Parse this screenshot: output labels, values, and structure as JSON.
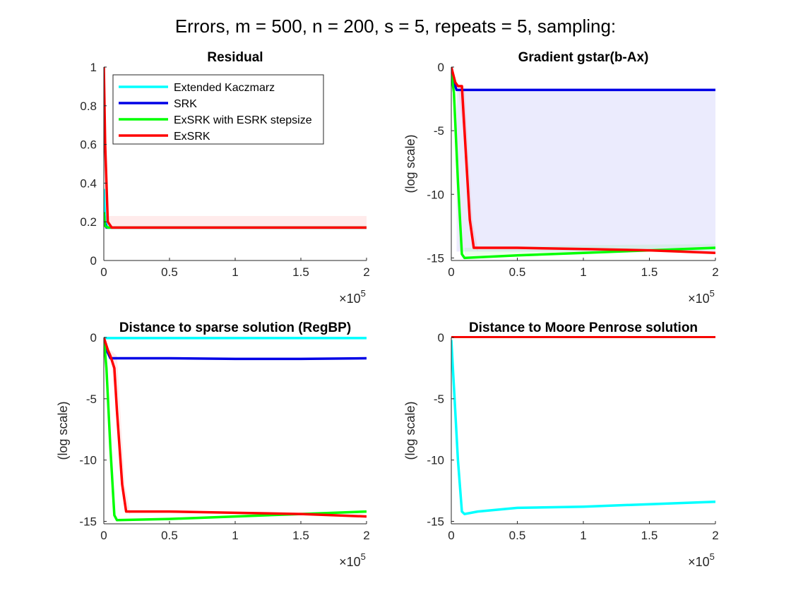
{
  "figure": {
    "title": "Errors, m = 500, n = 200, s = 5, repeats = 5, sampling:"
  },
  "colors": {
    "Extended Kaczmarz": "#00ffff",
    "SRK": "#0000e6",
    "ExSRK with ESRK stepsize": "#00ff00",
    "ExSRK": "#ff0000"
  },
  "legend": {
    "placement": "top-left of first panel",
    "entries": [
      "Extended Kaczmarz",
      "SRK",
      "ExSRK with ESRK stepsize",
      "ExSRK"
    ]
  },
  "chart_data": [
    {
      "type": "line",
      "title": "Residual",
      "xlabel": "",
      "ylabel": "",
      "xlim": [
        0,
        200000
      ],
      "ylim": [
        0,
        1
      ],
      "x_multiplier": "×10^5",
      "x_multiplier_base": "×10",
      "x_multiplier_exp": "5",
      "xticks": [
        0,
        50000,
        100000,
        150000,
        200000
      ],
      "xtick_labels": [
        "0",
        "0.5",
        "1",
        "1.5",
        "2"
      ],
      "yticks": [
        0,
        0.2,
        0.4,
        0.6,
        0.8,
        1
      ],
      "ytick_labels": [
        "0",
        "0.2",
        "0.4",
        "0.6",
        "0.8",
        "1"
      ],
      "grid": false,
      "bands": [
        {
          "series": "ExSRK",
          "x": [
            0,
            200000
          ],
          "y_low": [
            0.17,
            0.17
          ],
          "y_high": [
            0.23,
            0.23
          ]
        }
      ],
      "series": [
        {
          "name": "Extended Kaczmarz",
          "x": [
            0,
            1000,
            3000,
            200000
          ],
          "y": [
            0.37,
            0.2,
            0.17,
            0.17
          ]
        },
        {
          "name": "SRK",
          "x": [
            0,
            500,
            2000,
            200000
          ],
          "y": [
            0.25,
            0.2,
            0.17,
            0.17
          ]
        },
        {
          "name": "ExSRK with ESRK stepsize",
          "x": [
            0,
            800,
            3000,
            200000
          ],
          "y": [
            0.25,
            0.18,
            0.17,
            0.17
          ]
        },
        {
          "name": "ExSRK",
          "x": [
            0,
            1000,
            3000,
            6000,
            200000
          ],
          "y": [
            1.0,
            0.6,
            0.2,
            0.17,
            0.17
          ]
        }
      ]
    },
    {
      "type": "line",
      "title": "Gradient gstar(b-Ax)",
      "xlabel": "",
      "ylabel": "(log scale)",
      "xlim": [
        0,
        200000
      ],
      "ylim": [
        -15.2,
        0
      ],
      "x_multiplier": "×10^5",
      "x_multiplier_base": "×10",
      "x_multiplier_exp": "5",
      "xticks": [
        0,
        50000,
        100000,
        150000,
        200000
      ],
      "xtick_labels": [
        "0",
        "0.5",
        "1",
        "1.5",
        "2"
      ],
      "yticks": [
        0,
        -5,
        -10,
        -15
      ],
      "ytick_labels": [
        "0",
        "-5",
        "-10",
        "-15"
      ],
      "grid": false,
      "bands": [
        {
          "series": "SRK",
          "x": [
            4000,
            200000
          ],
          "y_low": [
            -14.5,
            -14.5
          ],
          "y_high": [
            -1.8,
            -1.8
          ]
        },
        {
          "series": "ExSRK",
          "x": [
            5000,
            10000,
            16000,
            20000
          ],
          "y_low": [
            -1.5,
            -6,
            -13.8,
            -14.5
          ],
          "y_high": [
            -1.5,
            -1.5,
            -12,
            -14.2
          ]
        },
        {
          "series": "ExSRK with ESRK stepsize",
          "x": [
            10000,
            100000,
            200000
          ],
          "y_low": [
            -14.9,
            -14.6,
            -14.4
          ],
          "y_high": [
            -14.2,
            -14.0,
            -13.9
          ]
        }
      ],
      "series": [
        {
          "name": "SRK",
          "x": [
            0,
            2000,
            4000,
            50000,
            100000,
            150000,
            200000
          ],
          "y": [
            -0.5,
            -1.2,
            -1.8,
            -1.8,
            -1.8,
            -1.8,
            -1.8
          ]
        },
        {
          "name": "ExSRK with ESRK stepsize",
          "x": [
            0,
            2000,
            5000,
            8000,
            10000,
            50000,
            100000,
            150000,
            200000
          ],
          "y": [
            -0.5,
            -2,
            -9,
            -14.7,
            -15.0,
            -14.8,
            -14.6,
            -14.4,
            -14.2
          ]
        },
        {
          "name": "ExSRK",
          "x": [
            0,
            3000,
            5000,
            8000,
            10000,
            14000,
            17000,
            50000,
            100000,
            150000,
            200000
          ],
          "y": [
            0,
            -1.2,
            -1.5,
            -1.5,
            -5,
            -12,
            -14.2,
            -14.2,
            -14.3,
            -14.4,
            -14.6
          ]
        }
      ]
    },
    {
      "type": "line",
      "title": "Distance to sparse solution (RegBP)",
      "xlabel": "",
      "ylabel": "(log scale)",
      "xlim": [
        0,
        200000
      ],
      "ylim": [
        -15.2,
        0
      ],
      "x_multiplier": "×10^5",
      "x_multiplier_base": "×10",
      "x_multiplier_exp": "5",
      "xticks": [
        0,
        50000,
        100000,
        150000,
        200000
      ],
      "xtick_labels": [
        "0",
        "0.5",
        "1",
        "1.5",
        "2"
      ],
      "yticks": [
        0,
        -5,
        -10,
        -15
      ],
      "ytick_labels": [
        "0",
        "-5",
        "-10",
        "-15"
      ],
      "grid": false,
      "bands": [
        {
          "series": "ExSRK",
          "x": [
            5000,
            10000,
            16000,
            20000
          ],
          "y_low": [
            -1.5,
            -6,
            -13.8,
            -14.5
          ],
          "y_high": [
            -1.0,
            -1.5,
            -12,
            -14.2
          ]
        }
      ],
      "series": [
        {
          "name": "Extended Kaczmarz",
          "x": [
            0,
            200000
          ],
          "y": [
            -0.05,
            -0.05
          ]
        },
        {
          "name": "SRK",
          "x": [
            0,
            2000,
            5000,
            50000,
            100000,
            150000,
            200000
          ],
          "y": [
            0,
            -1.0,
            -1.7,
            -1.7,
            -1.75,
            -1.75,
            -1.7
          ]
        },
        {
          "name": "ExSRK with ESRK stepsize",
          "x": [
            0,
            2000,
            5000,
            8000,
            10000,
            50000,
            100000,
            150000,
            200000
          ],
          "y": [
            0,
            -2.5,
            -9,
            -14.5,
            -14.9,
            -14.8,
            -14.6,
            -14.4,
            -14.2
          ]
        },
        {
          "name": "ExSRK",
          "x": [
            0,
            3000,
            5000,
            8000,
            10000,
            14000,
            17000,
            50000,
            100000,
            150000,
            200000
          ],
          "y": [
            0,
            -1.0,
            -1.5,
            -2.5,
            -6,
            -12,
            -14.2,
            -14.2,
            -14.3,
            -14.4,
            -14.6
          ]
        }
      ]
    },
    {
      "type": "line",
      "title": "Distance to Moore Penrose solution",
      "xlabel": "",
      "ylabel": "(log scale)",
      "xlim": [
        0,
        200000
      ],
      "ylim": [
        -15.2,
        0
      ],
      "x_multiplier": "×10^5",
      "x_multiplier_base": "×10",
      "x_multiplier_exp": "5",
      "xticks": [
        0,
        50000,
        100000,
        150000,
        200000
      ],
      "xtick_labels": [
        "0",
        "0.5",
        "1",
        "1.5",
        "2"
      ],
      "yticks": [
        0,
        -5,
        -10,
        -15
      ],
      "ytick_labels": [
        "0",
        "-5",
        "-10",
        "-15"
      ],
      "grid": false,
      "bands": [],
      "series": [
        {
          "name": "Extended Kaczmarz",
          "x": [
            0,
            2000,
            5000,
            8000,
            10000,
            20000,
            50000,
            100000,
            150000,
            200000
          ],
          "y": [
            -0.2,
            -4,
            -10,
            -14.2,
            -14.4,
            -14.2,
            -13.9,
            -13.8,
            -13.6,
            -13.4
          ]
        },
        {
          "name": "SRK",
          "x": [
            0,
            200000
          ],
          "y": [
            0.05,
            0.05
          ]
        },
        {
          "name": "ExSRK with ESRK stepsize",
          "x": [
            0,
            200000
          ],
          "y": [
            0.05,
            0.05
          ]
        },
        {
          "name": "ExSRK",
          "x": [
            0,
            200000
          ],
          "y": [
            0.05,
            0.05
          ]
        }
      ]
    }
  ]
}
